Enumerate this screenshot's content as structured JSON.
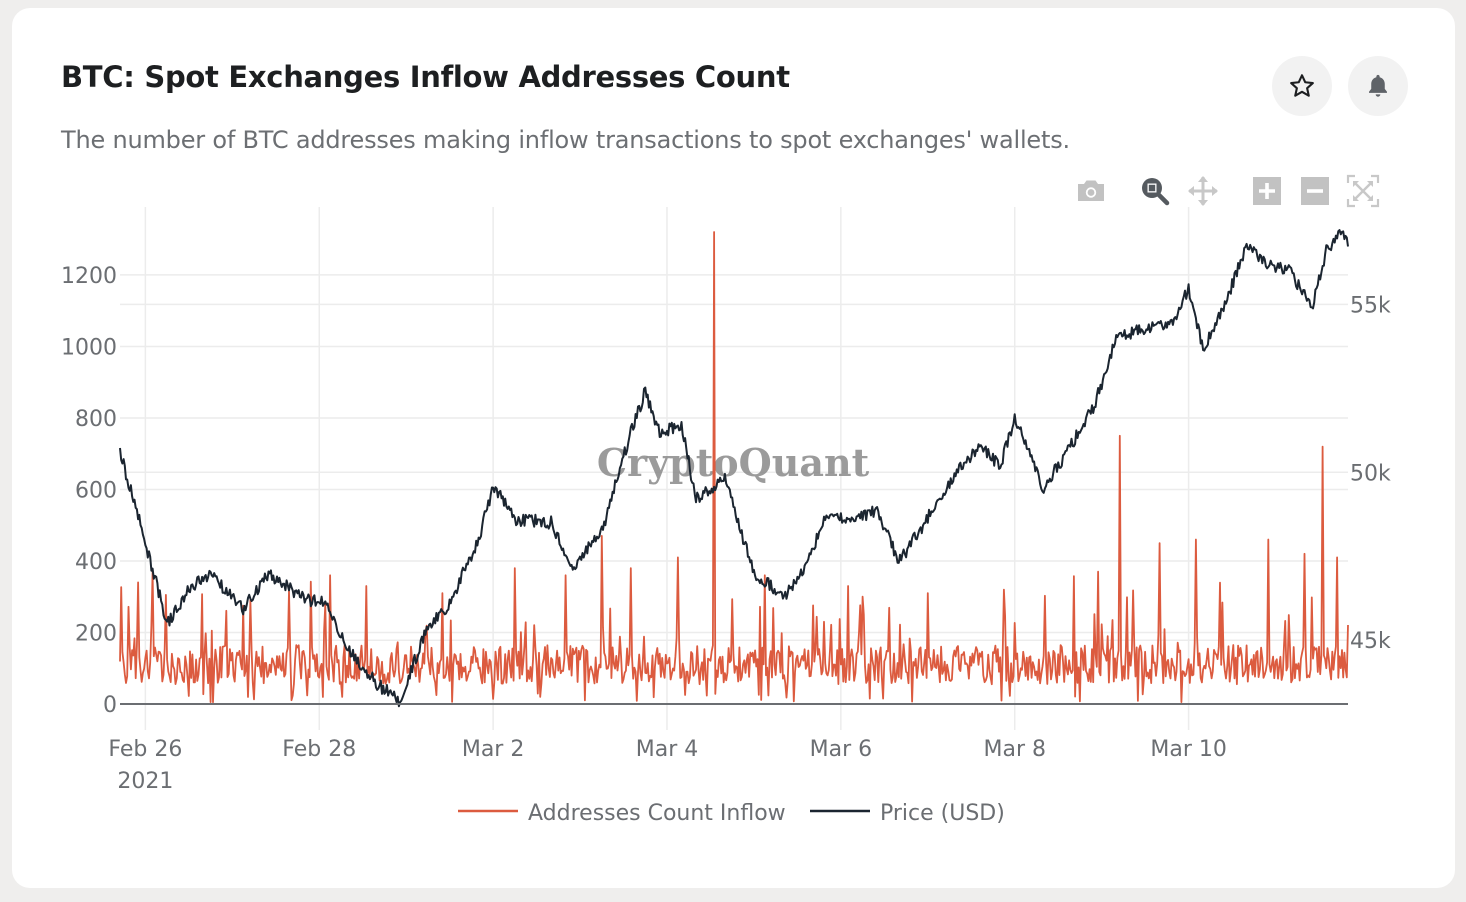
{
  "header": {
    "title": "BTC: Spot Exchanges Inflow Addresses Count",
    "subtitle": "The number of BTC addresses making inflow transactions to spot exchanges' wallets.",
    "favorite_icon": "star-outline-icon",
    "alert_icon": "bell-icon"
  },
  "modebar": [
    {
      "icon": "camera-icon",
      "label": "Download plot as png"
    },
    {
      "icon": "zoom-icon",
      "label": "Zoom",
      "active": true
    },
    {
      "icon": "pan-icon",
      "label": "Pan"
    },
    {
      "icon": "zoom-in-icon",
      "label": "Zoom in"
    },
    {
      "icon": "zoom-out-icon",
      "label": "Zoom out"
    },
    {
      "icon": "autoscale-icon",
      "label": "Autoscale"
    }
  ],
  "watermark": "CryptoQuant",
  "colors": {
    "inflow": "#dc5b3f",
    "price": "#1b2530",
    "grid": "#ececec",
    "axis_text": "#6b6e72",
    "zero_line": "#6b6e72"
  },
  "chart_data": {
    "type": "line",
    "title": "BTC: Spot Exchanges Inflow Addresses Count",
    "x_range": [
      "2021-02-25 17:00",
      "2021-03-11 20:00"
    ],
    "x_ticks": [
      {
        "date": "2021-02-26",
        "label": "Feb 26",
        "sublabel": "2021"
      },
      {
        "date": "2021-02-28",
        "label": "Feb 28"
      },
      {
        "date": "2021-03-02",
        "label": "Mar 2"
      },
      {
        "date": "2021-03-04",
        "label": "Mar 4"
      },
      {
        "date": "2021-03-06",
        "label": "Mar 6"
      },
      {
        "date": "2021-03-08",
        "label": "Mar 8"
      },
      {
        "date": "2021-03-10",
        "label": "Mar 10"
      }
    ],
    "y_left": {
      "label": "Addresses Count Inflow",
      "range": [
        0,
        1390
      ],
      "ticks": [
        0,
        200,
        400,
        600,
        800,
        1000,
        1200
      ]
    },
    "y_right": {
      "label": "Price (USD)",
      "range": [
        43100,
        57900
      ],
      "ticks": [
        45000,
        50000,
        55000
      ],
      "tick_labels": [
        "45k",
        "50k",
        "55k"
      ]
    },
    "grid": true,
    "legend": {
      "position": "bottom-center"
    },
    "series": [
      {
        "name": "Addresses Count Inflow",
        "axis": "left",
        "resolution": "hourly",
        "baseline_mean": 110,
        "points_note": "hourly values; notable peaks listed",
        "peaks": [
          {
            "t": "2021-02-25 22:00",
            "v": 340
          },
          {
            "t": "2021-02-26 02:00",
            "v": 370
          },
          {
            "t": "2021-02-27 05:00",
            "v": 290
          },
          {
            "t": "2021-02-28 03:00",
            "v": 360
          },
          {
            "t": "2021-02-28 13:00",
            "v": 330
          },
          {
            "t": "2021-03-01 10:00",
            "v": 310
          },
          {
            "t": "2021-03-02 06:00",
            "v": 380
          },
          {
            "t": "2021-03-02 20:00",
            "v": 360
          },
          {
            "t": "2021-03-03 06:00",
            "v": 470
          },
          {
            "t": "2021-03-03 14:00",
            "v": 380
          },
          {
            "t": "2021-03-04 03:00",
            "v": 410
          },
          {
            "t": "2021-03-04 13:00",
            "v": 1320
          },
          {
            "t": "2021-03-05 03:00",
            "v": 360
          },
          {
            "t": "2021-03-06 02:00",
            "v": 330
          },
          {
            "t": "2021-03-06 06:00",
            "v": 300
          },
          {
            "t": "2021-03-07 00:00",
            "v": 310
          },
          {
            "t": "2021-03-07 21:00",
            "v": 320
          },
          {
            "t": "2021-03-08 23:00",
            "v": 370
          },
          {
            "t": "2021-03-09 05:00",
            "v": 750
          },
          {
            "t": "2021-03-09 16:00",
            "v": 450
          },
          {
            "t": "2021-03-10 02:00",
            "v": 460
          },
          {
            "t": "2021-03-10 22:00",
            "v": 460
          },
          {
            "t": "2021-03-11 08:00",
            "v": 420
          },
          {
            "t": "2021-03-11 13:00",
            "v": 720
          },
          {
            "t": "2021-03-11 17:00",
            "v": 410
          }
        ]
      },
      {
        "name": "Price (USD)",
        "axis": "right",
        "resolution": "hourly",
        "anchors": [
          {
            "t": "2021-02-25 17:00",
            "v": 50600
          },
          {
            "t": "2021-02-26 00:00",
            "v": 47900
          },
          {
            "t": "2021-02-26 06:00",
            "v": 45500
          },
          {
            "t": "2021-02-26 12:00",
            "v": 46500
          },
          {
            "t": "2021-02-26 18:00",
            "v": 47000
          },
          {
            "t": "2021-02-27 03:00",
            "v": 45900
          },
          {
            "t": "2021-02-27 10:00",
            "v": 47000
          },
          {
            "t": "2021-02-27 20:00",
            "v": 46200
          },
          {
            "t": "2021-02-28 02:00",
            "v": 46100
          },
          {
            "t": "2021-02-28 08:00",
            "v": 44700
          },
          {
            "t": "2021-02-28 16:00",
            "v": 43700
          },
          {
            "t": "2021-02-28 22:00",
            "v": 43200
          },
          {
            "t": "2021-03-01 06:00",
            "v": 45400
          },
          {
            "t": "2021-03-01 12:00",
            "v": 46100
          },
          {
            "t": "2021-03-01 20:00",
            "v": 48000
          },
          {
            "t": "2021-03-02 00:00",
            "v": 49600
          },
          {
            "t": "2021-03-02 06:00",
            "v": 48600
          },
          {
            "t": "2021-03-02 16:00",
            "v": 48500
          },
          {
            "t": "2021-03-02 22:00",
            "v": 47200
          },
          {
            "t": "2021-03-03 06:00",
            "v": 48200
          },
          {
            "t": "2021-03-03 14:00",
            "v": 51200
          },
          {
            "t": "2021-03-03 18:00",
            "v": 52400
          },
          {
            "t": "2021-03-03 22:00",
            "v": 51200
          },
          {
            "t": "2021-03-04 04:00",
            "v": 51400
          },
          {
            "t": "2021-03-04 08:00",
            "v": 49200
          },
          {
            "t": "2021-03-04 16:00",
            "v": 49800
          },
          {
            "t": "2021-03-05 00:00",
            "v": 47000
          },
          {
            "t": "2021-03-05 04:00",
            "v": 46700
          },
          {
            "t": "2021-03-05 08:00",
            "v": 46200
          },
          {
            "t": "2021-03-05 14:00",
            "v": 47100
          },
          {
            "t": "2021-03-05 20:00",
            "v": 48800
          },
          {
            "t": "2021-03-06 02:00",
            "v": 48500
          },
          {
            "t": "2021-03-06 10:00",
            "v": 48900
          },
          {
            "t": "2021-03-06 16:00",
            "v": 47300
          },
          {
            "t": "2021-03-06 22:00",
            "v": 48300
          },
          {
            "t": "2021-03-07 06:00",
            "v": 49700
          },
          {
            "t": "2021-03-07 14:00",
            "v": 50800
          },
          {
            "t": "2021-03-07 20:00",
            "v": 50200
          },
          {
            "t": "2021-03-08 00:00",
            "v": 51600
          },
          {
            "t": "2021-03-08 08:00",
            "v": 49500
          },
          {
            "t": "2021-03-08 16:00",
            "v": 50900
          },
          {
            "t": "2021-03-08 22:00",
            "v": 52000
          },
          {
            "t": "2021-03-09 04:00",
            "v": 54000
          },
          {
            "t": "2021-03-09 10:00",
            "v": 54200
          },
          {
            "t": "2021-03-09 20:00",
            "v": 54400
          },
          {
            "t": "2021-03-10 00:00",
            "v": 55500
          },
          {
            "t": "2021-03-10 04:00",
            "v": 53700
          },
          {
            "t": "2021-03-10 10:00",
            "v": 55000
          },
          {
            "t": "2021-03-10 16:00",
            "v": 56800
          },
          {
            "t": "2021-03-10 22:00",
            "v": 56200
          },
          {
            "t": "2021-03-11 04:00",
            "v": 56000
          },
          {
            "t": "2021-03-11 10:00",
            "v": 54900
          },
          {
            "t": "2021-03-11 14:00",
            "v": 56600
          },
          {
            "t": "2021-03-11 18:00",
            "v": 57100
          },
          {
            "t": "2021-03-11 20:00",
            "v": 56900
          }
        ]
      }
    ]
  }
}
